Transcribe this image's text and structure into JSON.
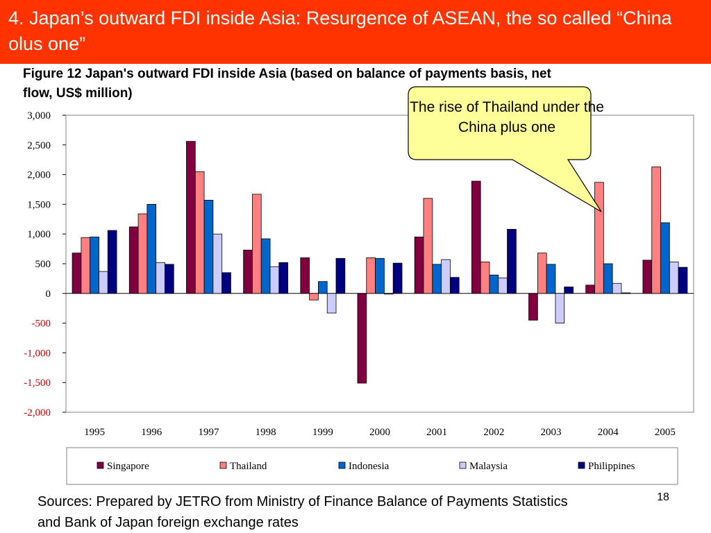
{
  "slide": {
    "title": "4. Japan’s outward FDI inside Asia: Resurgence of ASEAN, the so called “China olus one”",
    "figure_title": "Figure 12 Japan's outward FDI inside Asia (based on balance of payments basis, net flow, US$ million)",
    "callout": "The rise of Thailand under the China plus one",
    "sources": "Sources: Prepared by JETRO from Ministry of Finance Balance of Payments Statistics and Bank of Japan foreign exchange rates",
    "page_number": "18"
  },
  "colors": {
    "title_bar": "#ff3300",
    "callout_fill": "#ffff99",
    "negative_tick": "#cc0000"
  },
  "chart_data": {
    "type": "bar",
    "title": "Figure 12 Japan's outward FDI inside Asia (based on balance of payments basis, net flow, US$ million)",
    "xlabel": "",
    "ylabel": "",
    "ylim": [
      -2000,
      3000
    ],
    "yticks": [
      3000,
      2500,
      2000,
      1500,
      1000,
      500,
      0,
      -500,
      -1000,
      -1500,
      -2000
    ],
    "ytick_labels": [
      "3,000",
      "2,500",
      "2,000",
      "1,500",
      "1,000",
      "500",
      "0",
      "-500",
      "-1,000",
      "-1,500",
      "-2,000"
    ],
    "grid": false,
    "legend_position": "bottom",
    "categories": [
      "1995",
      "1996",
      "1997",
      "1998",
      "1999",
      "2000",
      "2001",
      "2002",
      "2003",
      "2004",
      "2005"
    ],
    "series": [
      {
        "name": "Singapore",
        "color": "#800040",
        "values": [
          680,
          1120,
          2560,
          730,
          600,
          -1510,
          950,
          1890,
          -450,
          140,
          560
        ]
      },
      {
        "name": "Thailand",
        "color": "#ff8080",
        "values": [
          940,
          1340,
          2050,
          1670,
          -110,
          600,
          1600,
          530,
          680,
          1870,
          2130
        ]
      },
      {
        "name": "Indonesia",
        "color": "#0066cc",
        "values": [
          950,
          1500,
          1570,
          920,
          200,
          590,
          490,
          310,
          490,
          500,
          1190
        ]
      },
      {
        "name": "Malaysia",
        "color": "#ccccff",
        "values": [
          370,
          520,
          1000,
          450,
          -330,
          -10,
          570,
          260,
          -500,
          170,
          530
        ]
      },
      {
        "name": "Philippines",
        "color": "#000080",
        "values": [
          1060,
          490,
          350,
          520,
          590,
          510,
          270,
          1080,
          110,
          10,
          440
        ]
      }
    ]
  }
}
